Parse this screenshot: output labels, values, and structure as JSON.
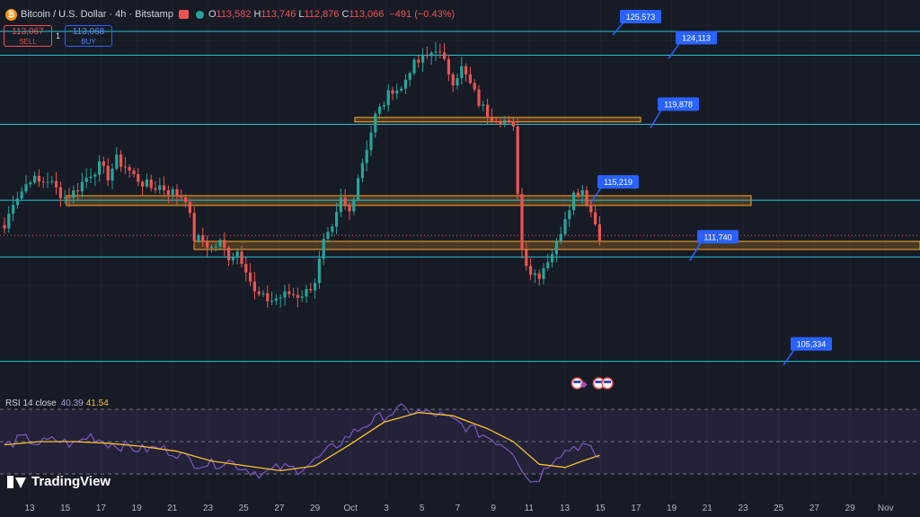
{
  "header": {
    "symbol_title": "Bitcoin / U.S. Dollar · 4h · Bitstamp",
    "open_label": "O",
    "open_value": "113,582",
    "high_label": "H",
    "high_value": "113,746",
    "low_label": "L",
    "low_value": "112,876",
    "close_label": "C",
    "close_value": "113,066",
    "change": "−491 (−0.43%)"
  },
  "trade": {
    "sell_price": "113,067",
    "sell_label": "SELL",
    "spread": "1",
    "buy_price": "113,068",
    "buy_label": "BUY"
  },
  "rsi": {
    "label": "RSI 14 close",
    "value": "40.39",
    "ma_value": "41.54"
  },
  "branding": {
    "name": "TradingView"
  },
  "colors": {
    "up": "#26a69a",
    "down": "#ef5350",
    "level_line": "#26c6da",
    "zone": "#ffa726",
    "label_bg": "#2962ff",
    "rsi": "#7e57c2",
    "rsi_ma": "#fbc02d",
    "background": "#171b26"
  },
  "chart_data": {
    "type": "candlestick",
    "title": "Bitcoin / U.S. Dollar · 4h · Bitstamp",
    "x_ticks": [
      "13",
      "15",
      "17",
      "19",
      "21",
      "23",
      "25",
      "27",
      "29",
      "Oct",
      "3",
      "5",
      "7",
      "9",
      "11",
      "13",
      "15",
      "17",
      "19",
      "21",
      "23",
      "25",
      "27",
      "29",
      "Nov"
    ],
    "ylim": [
      103500,
      127500
    ],
    "horizontal_levels": [
      125573,
      124113,
      119878,
      115219,
      111740,
      105334
    ],
    "level_labels": [
      "125,573",
      "124,113",
      "119,878",
      "115,219",
      "111,740",
      "105,334"
    ],
    "zones": [
      [
        120100,
        120300
      ],
      [
        114900,
        115500
      ],
      [
        112200,
        112700
      ]
    ],
    "current_price": 113066,
    "close_path": [
      [
        0,
        113500
      ],
      [
        2,
        115200
      ],
      [
        4,
        115800
      ],
      [
        6,
        116600
      ],
      [
        8,
        116300
      ],
      [
        10,
        116500
      ],
      [
        12,
        115900
      ],
      [
        14,
        115400
      ],
      [
        16,
        115700
      ],
      [
        18,
        116300
      ],
      [
        20,
        116900
      ],
      [
        22,
        117300
      ],
      [
        24,
        116700
      ],
      [
        26,
        117700
      ],
      [
        28,
        117300
      ],
      [
        30,
        116700
      ],
      [
        32,
        116300
      ],
      [
        34,
        116000
      ],
      [
        36,
        116100
      ],
      [
        38,
        115800
      ],
      [
        40,
        115600
      ],
      [
        42,
        115400
      ],
      [
        44,
        112900
      ],
      [
        46,
        112700
      ],
      [
        48,
        112300
      ],
      [
        50,
        112600
      ],
      [
        52,
        111800
      ],
      [
        54,
        112100
      ],
      [
        56,
        111100
      ],
      [
        58,
        109500
      ],
      [
        60,
        109200
      ],
      [
        62,
        109100
      ],
      [
        64,
        109300
      ],
      [
        66,
        109500
      ],
      [
        68,
        109400
      ],
      [
        70,
        109600
      ],
      [
        72,
        110300
      ],
      [
        74,
        112600
      ],
      [
        76,
        113300
      ],
      [
        78,
        115200
      ],
      [
        80,
        114500
      ],
      [
        82,
        116700
      ],
      [
        84,
        118500
      ],
      [
        86,
        120400
      ],
      [
        88,
        121200
      ],
      [
        90,
        122100
      ],
      [
        92,
        122000
      ],
      [
        94,
        123300
      ],
      [
        96,
        123700
      ],
      [
        98,
        124000
      ],
      [
        100,
        124600
      ],
      [
        102,
        123600
      ],
      [
        104,
        122600
      ],
      [
        106,
        123300
      ],
      [
        108,
        122300
      ],
      [
        110,
        121200
      ],
      [
        112,
        120500
      ],
      [
        114,
        120300
      ],
      [
        116,
        120100
      ],
      [
        118,
        119500
      ],
      [
        120,
        112200
      ],
      [
        122,
        110800
      ],
      [
        124,
        110700
      ],
      [
        126,
        111600
      ],
      [
        128,
        112500
      ],
      [
        130,
        114300
      ],
      [
        132,
        115600
      ],
      [
        134,
        115900
      ],
      [
        136,
        114500
      ],
      [
        138,
        113100
      ]
    ],
    "rsi_path": [
      [
        0,
        47
      ],
      [
        4,
        52
      ],
      [
        8,
        49
      ],
      [
        12,
        51
      ],
      [
        16,
        48
      ],
      [
        20,
        54
      ],
      [
        24,
        49
      ],
      [
        28,
        47
      ],
      [
        32,
        45
      ],
      [
        36,
        46
      ],
      [
        40,
        43
      ],
      [
        44,
        37
      ],
      [
        48,
        36
      ],
      [
        52,
        38
      ],
      [
        56,
        33
      ],
      [
        60,
        30
      ],
      [
        64,
        34
      ],
      [
        68,
        33
      ],
      [
        72,
        38
      ],
      [
        76,
        46
      ],
      [
        80,
        54
      ],
      [
        84,
        61
      ],
      [
        88,
        66
      ],
      [
        92,
        70
      ],
      [
        96,
        68
      ],
      [
        100,
        67
      ],
      [
        104,
        63
      ],
      [
        108,
        58
      ],
      [
        112,
        53
      ],
      [
        116,
        48
      ],
      [
        118,
        44
      ],
      [
        120,
        34
      ],
      [
        122,
        25
      ],
      [
        124,
        28
      ],
      [
        126,
        36
      ],
      [
        128,
        42
      ],
      [
        130,
        44
      ],
      [
        132,
        47
      ],
      [
        134,
        48
      ],
      [
        136,
        44
      ],
      [
        138,
        40
      ]
    ],
    "rsi_ma_path": [
      [
        0,
        48
      ],
      [
        8,
        50
      ],
      [
        16,
        50
      ],
      [
        24,
        49
      ],
      [
        32,
        47
      ],
      [
        40,
        44
      ],
      [
        48,
        38
      ],
      [
        56,
        35
      ],
      [
        64,
        32
      ],
      [
        72,
        35
      ],
      [
        80,
        48
      ],
      [
        88,
        62
      ],
      [
        96,
        68
      ],
      [
        104,
        66
      ],
      [
        112,
        58
      ],
      [
        118,
        50
      ],
      [
        124,
        36
      ],
      [
        130,
        34
      ],
      [
        134,
        38
      ],
      [
        138,
        41.5
      ]
    ],
    "rsi_ylim": [
      20,
      80
    ],
    "rsi_levels": [
      70,
      50,
      30
    ],
    "event_markers": [
      [
        113,
        "us-flag"
      ],
      [
        118,
        "us-flag"
      ],
      [
        120,
        "us-flag"
      ]
    ]
  }
}
